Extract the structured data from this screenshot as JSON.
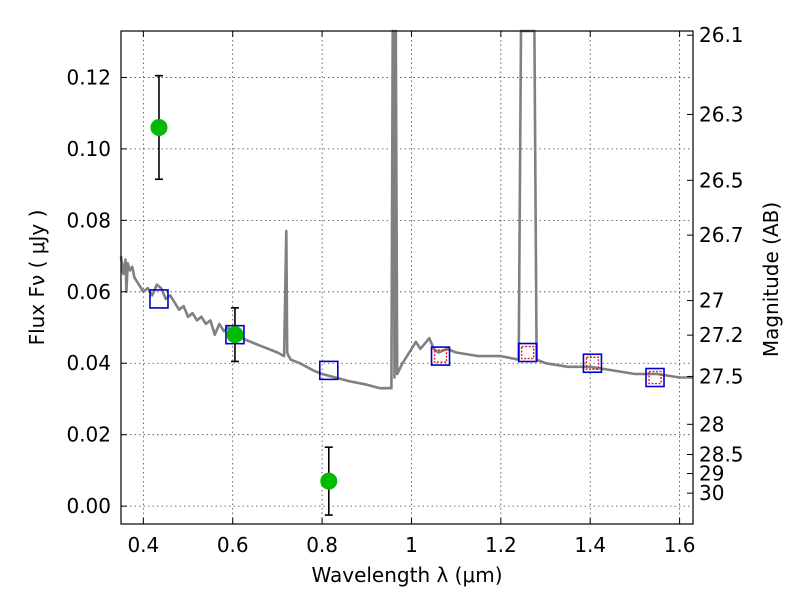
{
  "chart_data": {
    "type": "scatter",
    "title": "",
    "xlabel": "Wavelength  λ (μm)",
    "ylabel": "Flux  Fν  ( μJy )",
    "y2label": "Magnitude (AB)",
    "xlim": [
      0.35,
      1.63
    ],
    "ylim": [
      -0.005,
      0.133
    ],
    "grid": true,
    "x_ticks": [
      0.4,
      0.6,
      0.8,
      1.0,
      1.2,
      1.4,
      1.6
    ],
    "x_tick_labels": [
      "0.4",
      "0.6",
      "0.8",
      "1",
      "1.2",
      "1.4",
      "1.6"
    ],
    "y_ticks": [
      0.0,
      0.02,
      0.04,
      0.06,
      0.08,
      0.1,
      0.12
    ],
    "y_tick_labels": [
      "0.00",
      "0.02",
      "0.04",
      "0.06",
      "0.08",
      "0.10",
      "0.12"
    ],
    "y2_tick_labels": [
      "26.1",
      "26.3",
      "26.5",
      "26.7",
      "27",
      "27.2",
      "27.5",
      "28",
      "28.5",
      "29",
      "30"
    ],
    "y2_tick_values": [
      26.1,
      26.3,
      26.5,
      26.7,
      27.0,
      27.2,
      27.5,
      28.0,
      28.5,
      29.0,
      30.0
    ],
    "series": [
      {
        "kind": "line",
        "color": "#808080",
        "x": [
          0.35,
          0.355,
          0.36,
          0.362,
          0.365,
          0.37,
          0.375,
          0.38,
          0.39,
          0.4,
          0.41,
          0.42,
          0.43,
          0.44,
          0.45,
          0.46,
          0.47,
          0.48,
          0.49,
          0.5,
          0.51,
          0.52,
          0.53,
          0.54,
          0.55,
          0.56,
          0.57,
          0.58,
          0.59,
          0.6,
          0.62,
          0.64,
          0.66,
          0.68,
          0.7,
          0.715,
          0.72,
          0.722,
          0.725,
          0.73,
          0.75,
          0.78,
          0.8,
          0.83,
          0.86,
          0.9,
          0.93,
          0.955,
          0.958,
          0.96,
          0.962,
          0.965,
          0.968,
          0.972,
          0.98,
          0.99,
          1.0,
          1.01,
          1.02,
          1.04,
          1.05,
          1.06,
          1.08,
          1.1,
          1.15,
          1.2,
          1.24,
          1.245,
          1.25,
          1.27,
          1.275,
          1.28,
          1.3,
          1.35,
          1.4,
          1.45,
          1.5,
          1.55,
          1.6,
          1.63
        ],
        "y": [
          0.07,
          0.065,
          0.069,
          0.06,
          0.068,
          0.066,
          0.067,
          0.064,
          0.062,
          0.06,
          0.061,
          0.059,
          0.062,
          0.061,
          0.058,
          0.059,
          0.057,
          0.055,
          0.056,
          0.053,
          0.054,
          0.052,
          0.053,
          0.051,
          0.052,
          0.048,
          0.051,
          0.049,
          0.05,
          0.048,
          0.047,
          0.046,
          0.045,
          0.044,
          0.043,
          0.042,
          0.077,
          0.043,
          0.042,
          0.041,
          0.04,
          0.038,
          0.037,
          0.036,
          0.035,
          0.034,
          0.033,
          0.033,
          0.133,
          0.133,
          0.036,
          0.133,
          0.037,
          0.038,
          0.04,
          0.042,
          0.044,
          0.046,
          0.044,
          0.047,
          0.044,
          0.043,
          0.044,
          0.043,
          0.042,
          0.042,
          0.041,
          0.133,
          0.133,
          0.133,
          0.133,
          0.041,
          0.04,
          0.039,
          0.039,
          0.038,
          0.037,
          0.037,
          0.036,
          0.036
        ]
      },
      {
        "kind": "open-square",
        "color": "#0000cc",
        "x": [
          0.435,
          0.605,
          0.815,
          1.065,
          1.26,
          1.405,
          1.545
        ],
        "y": [
          0.058,
          0.048,
          0.038,
          0.042,
          0.043,
          0.04,
          0.036
        ]
      },
      {
        "kind": "open-square-dotted",
        "color": "#dd2222",
        "x": [
          1.065,
          1.26,
          1.405,
          1.545
        ],
        "y": [
          0.042,
          0.043,
          0.04,
          0.036
        ]
      },
      {
        "kind": "point-errorbar",
        "color": "#00bb00",
        "x": [
          0.435,
          0.605,
          0.815
        ],
        "y": [
          0.106,
          0.048,
          0.007
        ],
        "yerr": [
          0.0145,
          0.0075,
          0.0095
        ]
      }
    ]
  }
}
